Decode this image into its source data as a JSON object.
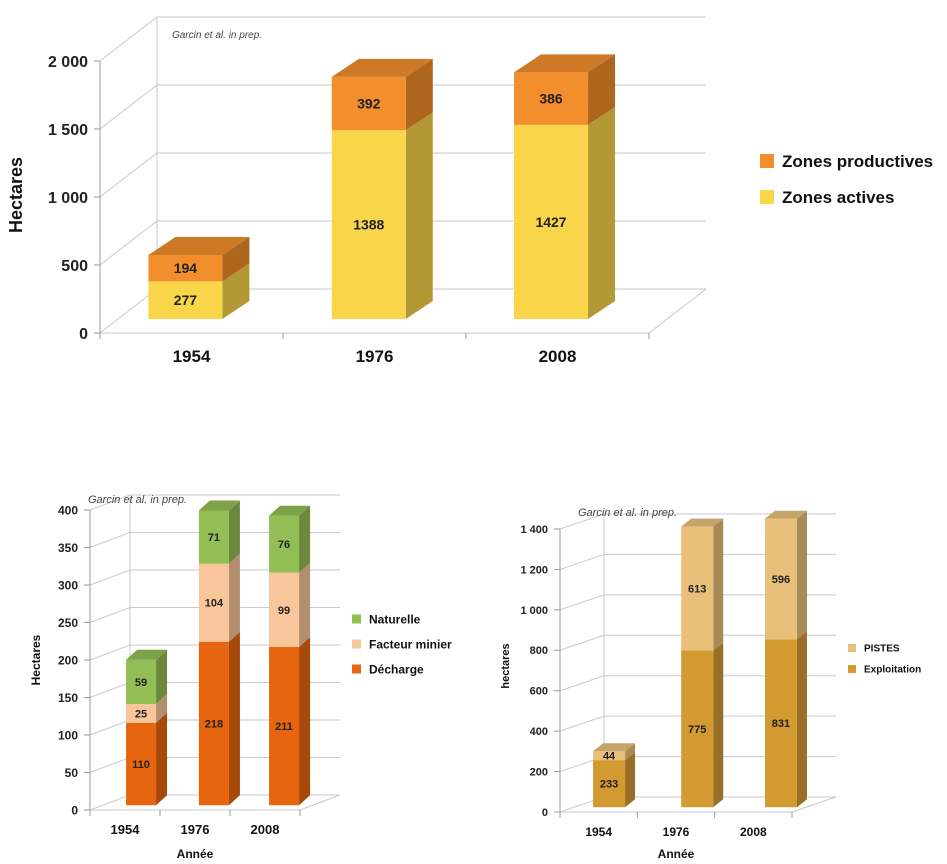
{
  "chart_data": [
    {
      "type": "bar",
      "stacked": true,
      "categories": [
        "1954",
        "1976",
        "2008"
      ],
      "series": [
        {
          "name": "Zones actives",
          "values": [
            277,
            1388,
            1427
          ],
          "color": "#F9D54A"
        },
        {
          "name": "Zones productives",
          "values": [
            194,
            392,
            386
          ],
          "color": "#F28E2B"
        }
      ],
      "title": "",
      "annotation": "Garcin et al. in prep.",
      "xlabel": "",
      "ylabel": "Hectares",
      "ylim": [
        0,
        2000
      ],
      "yticks": [
        "0",
        "500",
        "1 000",
        "1 500",
        "2 000"
      ],
      "grid": true,
      "legend": "right",
      "style": "3d"
    },
    {
      "type": "bar",
      "stacked": true,
      "categories": [
        "1954",
        "1976",
        "2008"
      ],
      "series": [
        {
          "name": "Décharge",
          "values": [
            110,
            218,
            211
          ],
          "color": "#E8650F"
        },
        {
          "name": "Facteur minier",
          "values": [
            25,
            104,
            99
          ],
          "color": "#F9C59A"
        },
        {
          "name": "Naturelle",
          "values": [
            59,
            71,
            76
          ],
          "color": "#93BE55"
        }
      ],
      "title": "",
      "annotation": "Garcin et al. in prep.",
      "xlabel": "Année",
      "ylabel": "Hectares",
      "ylim": [
        0,
        400
      ],
      "yticks": [
        "0",
        "50",
        "100",
        "150",
        "200",
        "250",
        "300",
        "350",
        "400"
      ],
      "grid": true,
      "legend": "right",
      "style": "3d"
    },
    {
      "type": "bar",
      "stacked": true,
      "categories": [
        "1954",
        "1976",
        "2008"
      ],
      "series": [
        {
          "name": "Exploitation",
          "values": [
            233,
            775,
            831
          ],
          "color": "#D39A32"
        },
        {
          "name": "PISTES",
          "values": [
            44,
            613,
            596
          ],
          "color": "#E9C07A"
        }
      ],
      "title": "",
      "annotation": "Garcin et al. in prep.",
      "xlabel": "Année",
      "ylabel": "hectares",
      "ylim": [
        0,
        1400
      ],
      "yticks": [
        "0",
        "200",
        "400",
        "600",
        "800",
        "1 000",
        "1 200",
        "1 400"
      ],
      "grid": true,
      "legend": "right",
      "style": "3d"
    }
  ]
}
